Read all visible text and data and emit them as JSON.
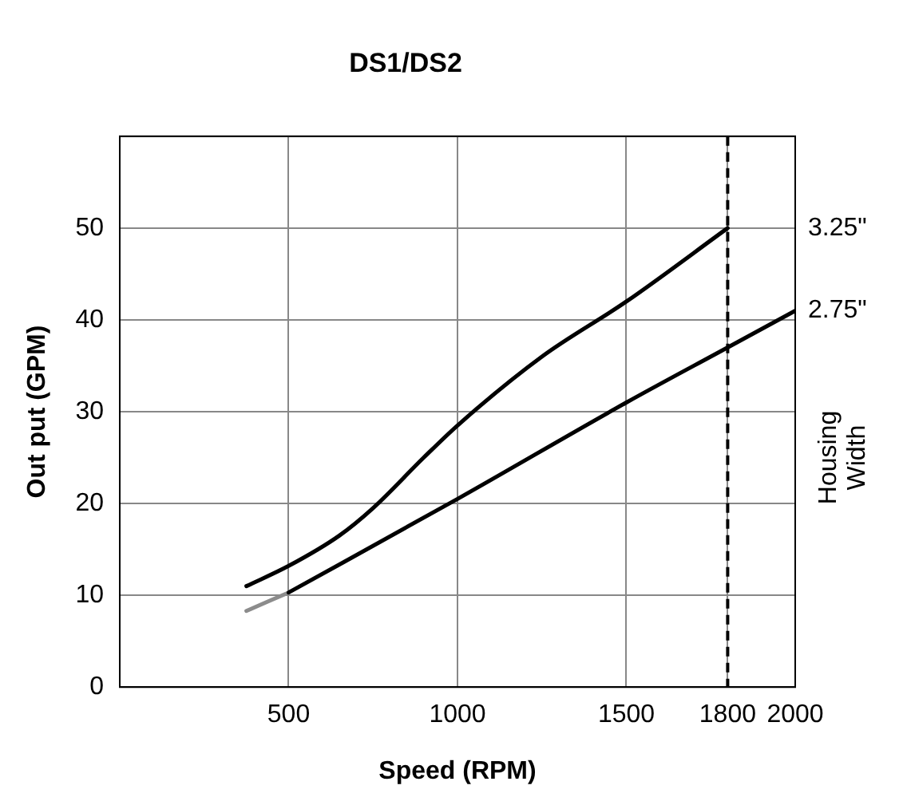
{
  "chart_data": {
    "type": "line",
    "title": "DS1/DS2",
    "xlabel": "Speed (RPM)",
    "ylabel": "Out put (GPM)",
    "y2label": "Housing Width",
    "xlim": [
      0,
      2000
    ],
    "xticks": [
      500,
      1000,
      1500,
      1800,
      2000
    ],
    "ylim": [
      0,
      60
    ],
    "yticks": [
      0,
      10,
      20,
      30,
      40,
      50,
      {
        "value": 60,
        "label": null
      }
    ],
    "grid": true,
    "legend": false,
    "marker": "none",
    "line_style": "solid",
    "series": [
      {
        "name": "3.25\"",
        "color": "#000000",
        "x": [
          375,
          500,
          650,
          750,
          900,
          1000,
          1250,
          1500,
          1800
        ],
        "values": [
          11,
          13.2,
          16.5,
          19.5,
          25,
          28.5,
          36,
          42,
          50
        ]
      },
      {
        "name": "2.75\"",
        "color": "#000000",
        "x": [
          500,
          1000,
          1500,
          1800,
          2000
        ],
        "values": [
          10.3,
          20.5,
          31,
          37,
          41
        ]
      },
      {
        "color": "#8c8c8c",
        "x": [
          375,
          500
        ],
        "values": [
          8.3,
          10.3
        ]
      }
    ],
    "ref_lines": [
      {
        "axis": "x",
        "value": 1800,
        "color": "#000000",
        "line_style": "dashed"
      }
    ]
  }
}
